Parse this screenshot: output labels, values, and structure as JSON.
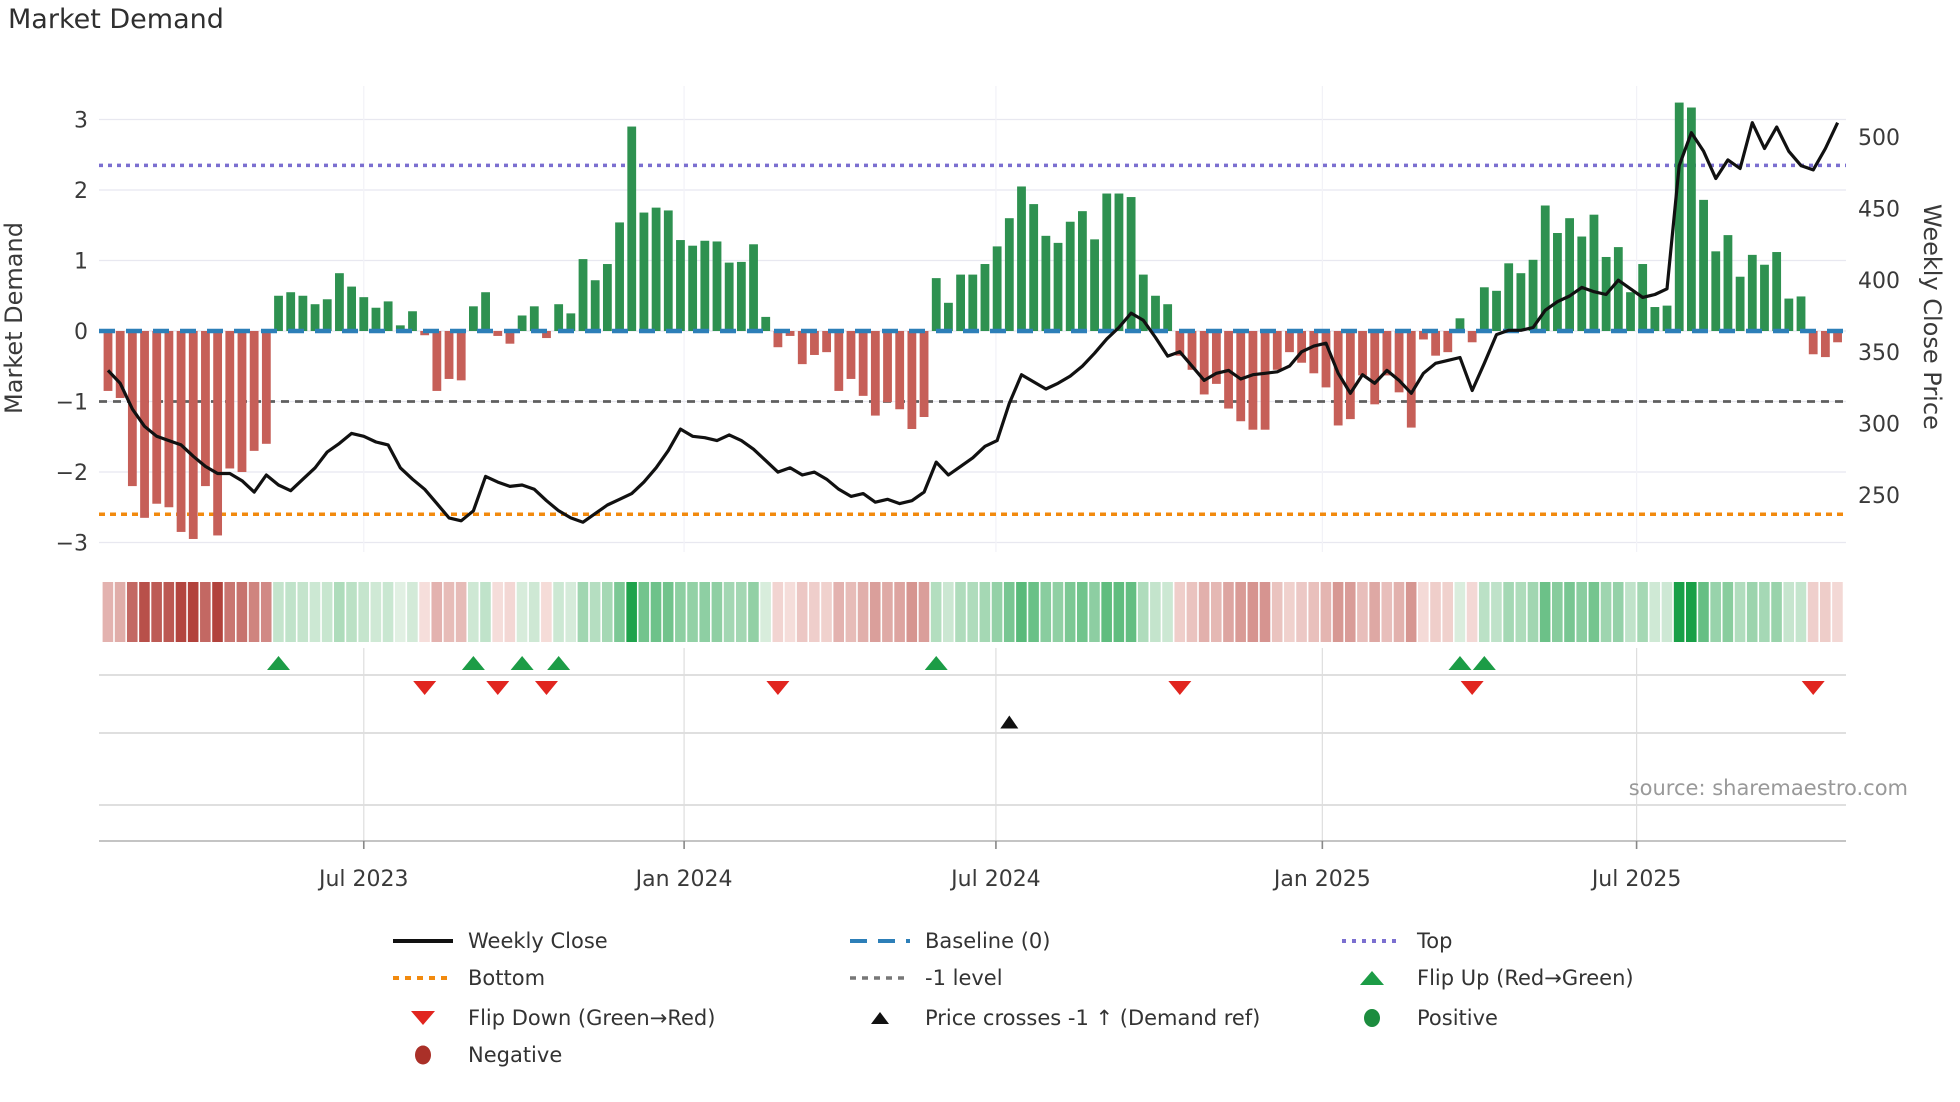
{
  "title": "Market Demand",
  "source": "source: sharemaestro.com",
  "y_axis": {
    "label": "Market Demand",
    "ticks": [
      3,
      2,
      1,
      0,
      -1,
      -2,
      -3
    ]
  },
  "y2_axis": {
    "label": "Weekly Close Price",
    "ticks": [
      500,
      450,
      400,
      350,
      300,
      250
    ]
  },
  "x_axis": {
    "tick_labels": [
      "Jul 2023",
      "Jan 2024",
      "Jul 2024",
      "Jan 2025",
      "Jul 2025"
    ],
    "tick_weeks": [
      21,
      47.3,
      72.9,
      99.7,
      125.5
    ]
  },
  "colors": {
    "bar_positive": "#2e9150",
    "bar_negative": "#c65f58",
    "price_line": "#111111",
    "baseline_blue": "#2d7fb8",
    "top_purple": "#7b6fd0",
    "bottom_orange": "#f28a0e",
    "minus1_gray": "#5f5f5f",
    "flip_up_green": "#1c9c46",
    "flip_down_red": "#e1251f",
    "cross_black": "#111111",
    "positive_dot": "#1c8c3e",
    "negative_dot": "#aa3028",
    "grid": "#e8e8f0",
    "panel_line": "#cccccc"
  },
  "legend": {
    "items": [
      {
        "label": "Weekly Close",
        "glyph": "line-black",
        "col": 0,
        "row": 0
      },
      {
        "label": "Baseline (0)",
        "glyph": "dash-blue",
        "col": 1,
        "row": 0
      },
      {
        "label": "Top",
        "glyph": "dot-purple",
        "col": 2,
        "row": 0
      },
      {
        "label": "Bottom",
        "glyph": "dot-orange",
        "col": 0,
        "row": 1
      },
      {
        "label": "-1 level",
        "glyph": "dot-gray",
        "col": 1,
        "row": 1
      },
      {
        "label": "Flip Up (Red→Green)",
        "glyph": "tri-up-green",
        "col": 2,
        "row": 1
      },
      {
        "label": "Flip Down (Green→Red)",
        "glyph": "tri-down-red",
        "col": 0,
        "row": 2
      },
      {
        "label": "Price crosses -1 ↑ (Demand ref)",
        "glyph": "tri-up-black",
        "col": 1,
        "row": 2
      },
      {
        "label": "Positive",
        "glyph": "circle-green",
        "col": 2,
        "row": 2
      },
      {
        "label": "Negative",
        "glyph": "circle-darkred",
        "col": 0,
        "row": 3
      }
    ]
  },
  "chart_data": {
    "type": "bar+line",
    "title": "Market Demand",
    "ylabel": "Market Demand",
    "y2label": "Weekly Close Price",
    "frequency": "weekly",
    "start_date": "2023-02-10",
    "ylim_demand": [
      -3.5,
      3.5
    ],
    "baseline_level": 0,
    "top_level": 2.35,
    "bottom_level": -2.6,
    "minus1_level": -1,
    "demand": [
      -0.85,
      -0.95,
      -2.2,
      -2.65,
      -2.45,
      -2.5,
      -2.85,
      -2.95,
      -2.2,
      -2.9,
      -1.95,
      -2.0,
      -1.7,
      -1.6,
      0.5,
      0.55,
      0.5,
      0.38,
      0.45,
      0.82,
      0.63,
      0.48,
      0.33,
      0.42,
      0.08,
      0.28,
      -0.06,
      -0.85,
      -0.68,
      -0.7,
      0.35,
      0.55,
      -0.07,
      -0.18,
      0.22,
      0.35,
      -0.1,
      0.38,
      0.25,
      1.02,
      0.72,
      0.95,
      1.54,
      2.9,
      1.68,
      1.75,
      1.71,
      1.29,
      1.21,
      1.28,
      1.27,
      0.97,
      0.98,
      1.23,
      0.2,
      -0.23,
      -0.07,
      -0.47,
      -0.34,
      -0.3,
      -0.85,
      -0.68,
      -0.92,
      -1.2,
      -1.01,
      -1.11,
      -1.39,
      -1.22,
      0.75,
      0.4,
      0.8,
      0.8,
      0.95,
      1.2,
      1.6,
      2.05,
      1.8,
      1.35,
      1.25,
      1.55,
      1.7,
      1.3,
      1.95,
      1.95,
      1.9,
      0.8,
      0.5,
      0.38,
      -0.35,
      -0.55,
      -0.9,
      -0.75,
      -1.1,
      -1.28,
      -1.4,
      -1.4,
      -0.55,
      -0.3,
      -0.45,
      -0.6,
      -0.8,
      -1.34,
      -1.25,
      -0.63,
      -1.04,
      -0.63,
      -0.87,
      -1.37,
      -0.12,
      -0.35,
      -0.3,
      0.18,
      -0.16,
      0.62,
      0.57,
      0.96,
      0.82,
      1.01,
      1.78,
      1.39,
      1.6,
      1.34,
      1.65,
      1.05,
      1.19,
      0.55,
      0.95,
      0.34,
      0.36,
      3.24,
      3.17,
      1.86,
      1.13,
      1.36,
      0.77,
      1.08,
      0.94,
      1.12,
      0.46,
      0.49,
      -0.33,
      -0.37,
      -0.16
    ],
    "price": [
      337,
      328,
      310,
      298,
      291,
      288,
      285,
      277,
      270,
      265,
      265,
      260,
      252,
      264,
      257,
      253,
      261,
      269,
      280,
      286,
      293,
      291,
      287,
      285,
      269,
      261,
      254,
      244,
      234,
      232,
      239,
      263,
      259,
      256,
      257,
      254,
      246,
      239,
      234,
      231,
      237,
      243,
      247,
      251,
      259,
      269,
      281,
      296,
      291,
      290,
      288,
      292,
      288,
      282,
      274,
      266,
      269,
      264,
      266,
      261,
      254,
      249,
      251,
      245,
      247,
      244,
      246,
      252,
      273,
      264,
      270,
      276,
      284,
      288,
      314,
      334,
      329,
      324,
      328,
      333,
      340,
      349,
      359,
      367,
      377,
      372,
      360,
      347,
      350,
      340,
      330,
      335,
      337,
      331,
      334,
      335,
      336,
      340,
      350,
      354,
      356,
      335,
      321,
      334,
      328,
      337,
      330,
      321,
      335,
      342,
      344,
      346,
      323,
      342,
      362,
      365,
      365,
      367,
      379,
      385,
      389,
      395,
      392,
      390,
      400,
      394,
      388,
      390,
      394,
      480,
      503,
      490,
      471,
      484,
      478,
      510,
      492,
      507,
      490,
      480,
      477,
      492,
      510
    ],
    "flip_up_weeks": [
      14,
      30,
      34,
      37,
      68,
      111,
      113
    ],
    "flip_down_weeks": [
      26,
      32,
      36,
      55,
      88,
      112,
      140
    ],
    "price_cross_weeks": [
      74
    ],
    "legend_entries": [
      "Weekly Close",
      "Baseline (0)",
      "Top",
      "Bottom",
      "-1 level",
      "Flip Up (Red→Green)",
      "Flip Down (Green→Red)",
      "Price crosses -1 ↑ (Demand ref)",
      "Positive",
      "Negative"
    ],
    "heatmap": "same weekly demand values rendered as red/green intensity strip"
  }
}
